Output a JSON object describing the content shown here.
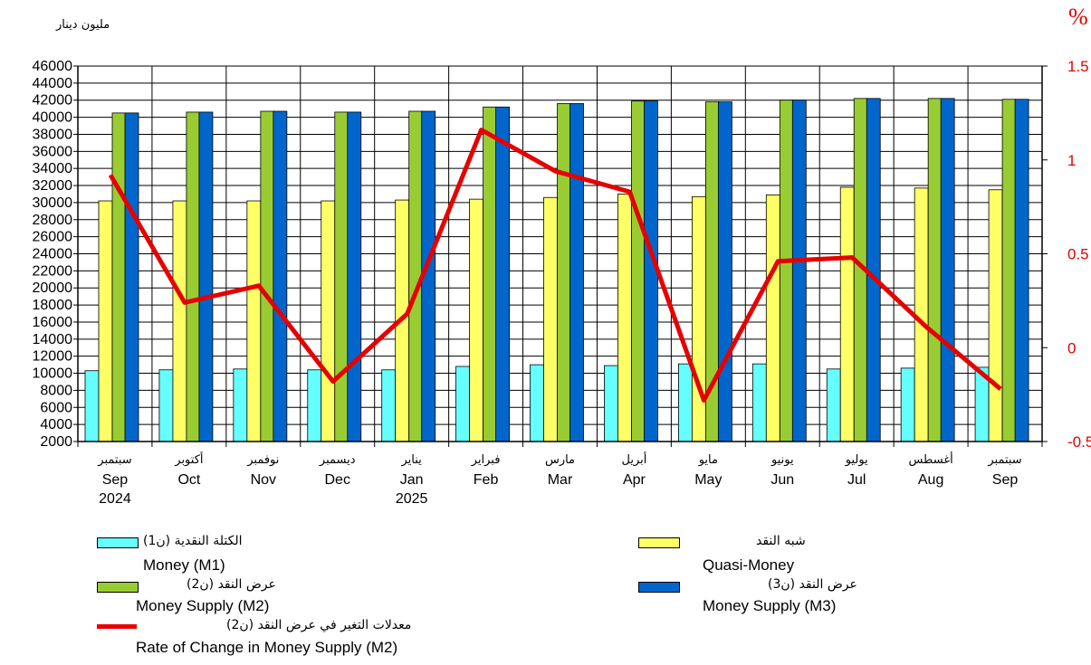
{
  "left_unit_label": "مليون دينار",
  "right_unit_label": "%",
  "chart_data": {
    "type": "bar",
    "categories_ar": [
      "سبتمبر",
      "أكتوبر",
      "نوفمبر",
      "ديسمبر",
      "يناير",
      "فبراير",
      "مارس",
      "أبريل",
      "مايو",
      "يونيو",
      "يوليو",
      "أغسطس",
      "سبتمبر"
    ],
    "categories_en": [
      "Sep",
      "Oct",
      "Nov",
      "Dec",
      "Jan",
      "Feb",
      "Mar",
      "Apr",
      "May",
      "Jun",
      "Jul",
      "Aug",
      "Sep"
    ],
    "years": [
      "2024",
      "",
      "",
      "",
      "2025",
      "",
      "",
      "",
      "",
      "",
      "",
      "",
      ""
    ],
    "y_left": {
      "min": 2000,
      "max": 46000,
      "step": 2000
    },
    "y_right": {
      "min": -0.5,
      "max": 1.5,
      "ticks": [
        1.5,
        1,
        0.5,
        0,
        -0.5
      ]
    },
    "grid": true,
    "series": [
      {
        "name_ar": "الكتلة النقدية (ن1)",
        "name": "Money (M1)",
        "color": "#66ffff",
        "axis": "left",
        "values": [
          10300,
          10400,
          10500,
          10400,
          10400,
          10800,
          11000,
          10900,
          11100,
          11100,
          10500,
          10600,
          10700
        ]
      },
      {
        "name_ar": "شبه النقد",
        "name": "Quasi-Money",
        "color": "#ffff66",
        "axis": "left",
        "values": [
          30200,
          30200,
          30200,
          30200,
          30300,
          30400,
          30600,
          31000,
          30700,
          30900,
          31800,
          31700,
          31500
        ]
      },
      {
        "name_ar": "عرض النقد (ن2)",
        "name": "Money Supply (M2)",
        "color": "#99cc33",
        "axis": "left",
        "values": [
          40500,
          40600,
          40700,
          40600,
          40700,
          41200,
          41600,
          41900,
          41800,
          42000,
          42200,
          42200,
          42100
        ]
      },
      {
        "name_ar": "عرض النقد (ن3)",
        "name": "Money Supply (M3)",
        "color": "#0066cc",
        "axis": "left",
        "values": [
          40500,
          40600,
          40700,
          40600,
          40700,
          41200,
          41600,
          41900,
          41800,
          42000,
          42200,
          42200,
          42100
        ]
      },
      {
        "name_ar": "معدلات التغير في عرض النقد (ن2)",
        "name": "Rate of Change in Money Supply (M2)",
        "color": "#e60000",
        "axis": "right",
        "type": "line",
        "values": [
          0.92,
          0.24,
          0.33,
          -0.18,
          0.18,
          1.16,
          0.94,
          0.83,
          -0.28,
          0.46,
          0.48,
          0.11,
          -0.22
        ]
      }
    ]
  }
}
